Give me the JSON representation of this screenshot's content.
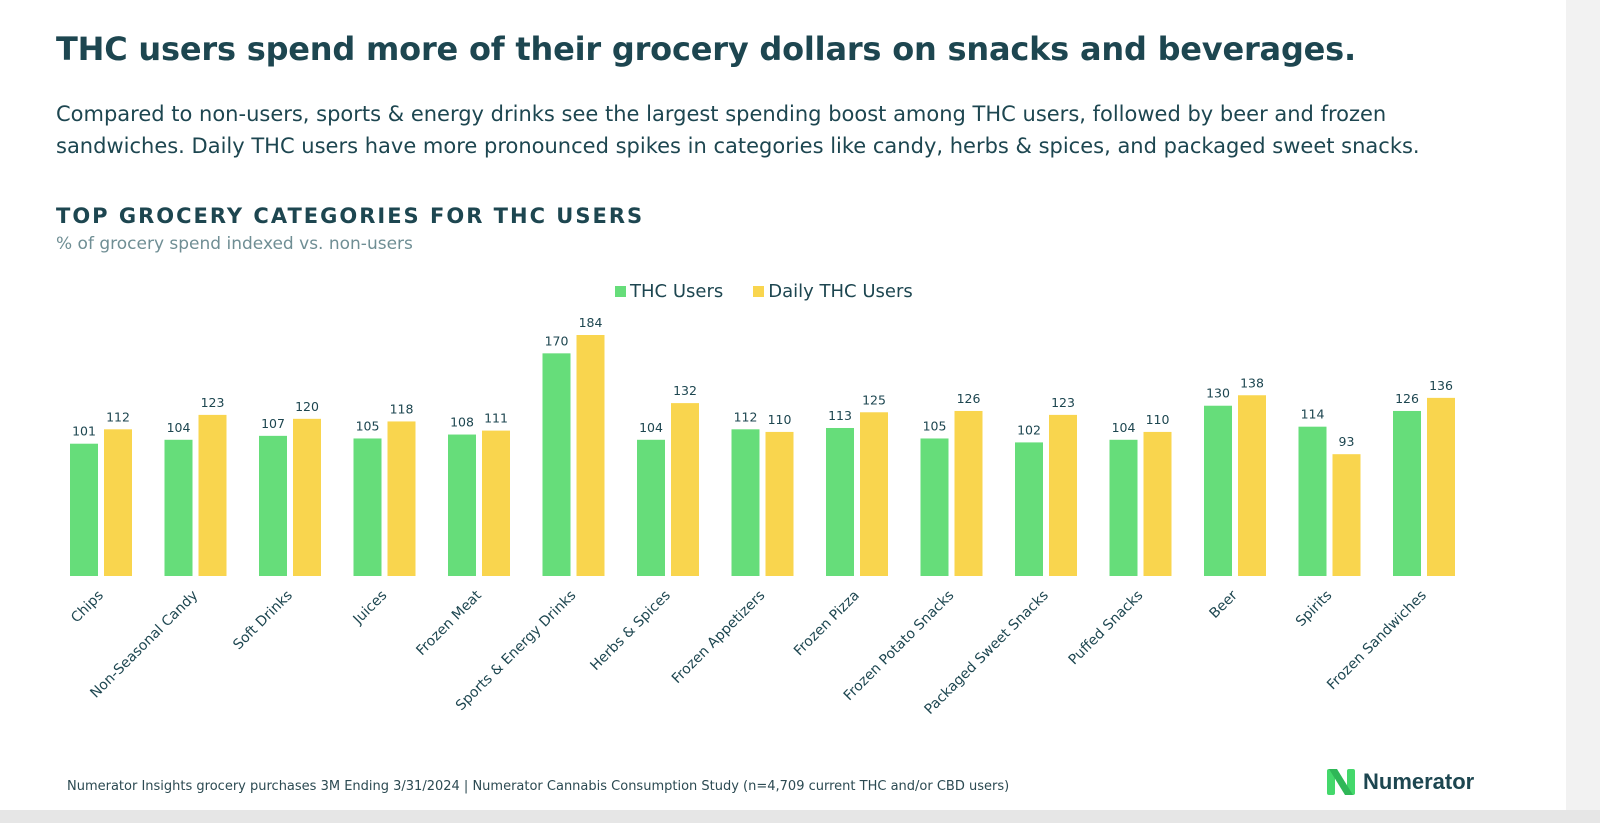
{
  "headline": "THC users spend more of their grocery dollars on snacks and beverages.",
  "subtext": "Compared to non-users, sports & energy drinks see the largest spending boost among THC users, followed by beer and frozen sandwiches. Daily THC users have more pronounced spikes in categories like candy, herbs & spices, and packaged sweet snacks.",
  "chart_data": {
    "type": "bar",
    "title": "TOP GROCERY CATEGORIES FOR THC USERS",
    "subtitle": "% of grocery spend indexed vs. non-users",
    "legend_position": "top-center",
    "categories": [
      "Chips",
      "Non-Seasonal Candy",
      "Soft Drinks",
      "Juices",
      "Frozen Meat",
      "Sports & Energy Drinks",
      "Herbs & Spices",
      "Frozen Appetizers",
      "Frozen Pizza",
      "Frozen Potato Snacks",
      "Packaged Sweet Snacks",
      "Puffed Snacks",
      "Beer",
      "Spirits",
      "Frozen Sandwiches"
    ],
    "series": [
      {
        "name": "THC Users",
        "color": "#66dd7a",
        "values": [
          101,
          104,
          107,
          105,
          108,
          170,
          104,
          112,
          113,
          105,
          102,
          104,
          130,
          114,
          126
        ]
      },
      {
        "name": "Daily THC Users",
        "color": "#f9d54e",
        "values": [
          112,
          123,
          120,
          118,
          111,
          184,
          132,
          110,
          125,
          126,
          123,
          110,
          138,
          93,
          136
        ]
      }
    ],
    "ylim": [
      0,
      184
    ],
    "grid": false
  },
  "footer": "Numerator Insights grocery purchases 3M Ending 3/31/2024  |  Numerator Cannabis Consumption Study (n=4,709 current THC and/or CBD users)",
  "brand": {
    "name": "Numerator",
    "icon": "numerator-logo-icon",
    "colors": {
      "primary": "#44d86b",
      "secondary": "#2fb757"
    }
  }
}
